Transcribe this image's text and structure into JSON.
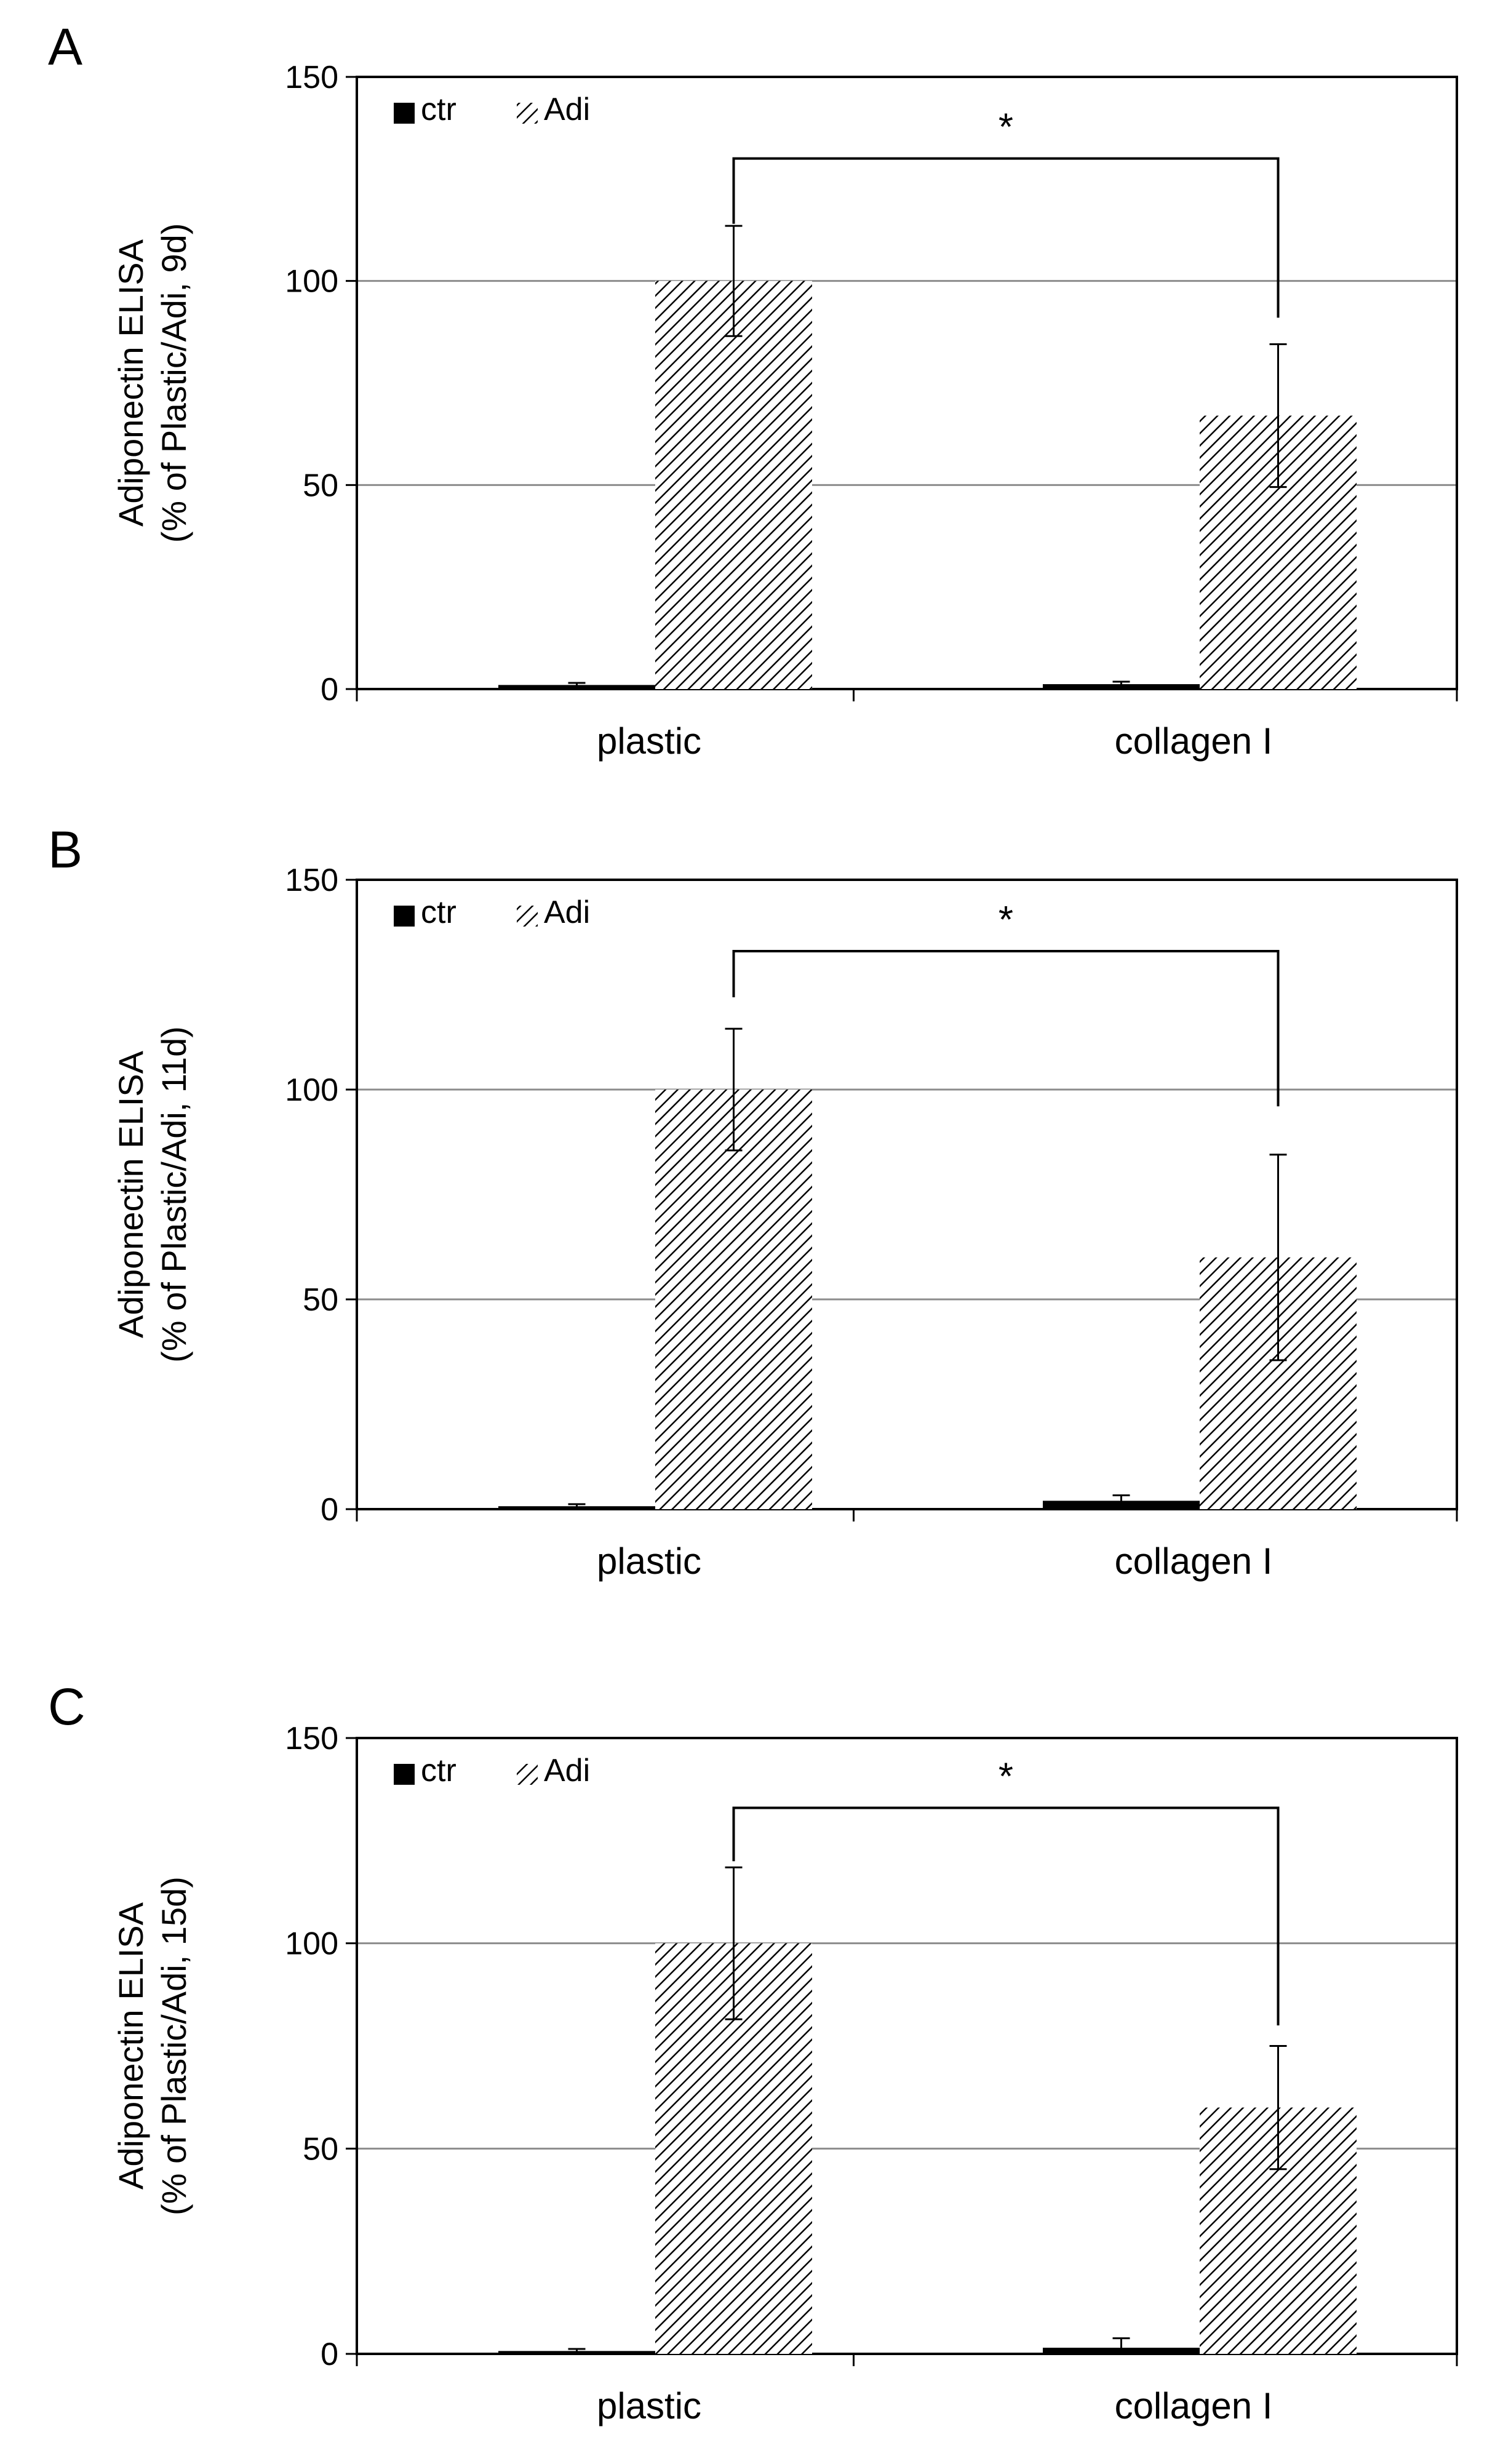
{
  "chart_data": [
    {
      "type": "bar",
      "panel": "A",
      "ylabel": [
        "Adiponectin ELISA",
        "(% of Plastic/Adi, 9d)"
      ],
      "categories": [
        "plastic",
        "collagen I"
      ],
      "series": [
        {
          "name": "ctr",
          "values": [
            1.0,
            1.2
          ],
          "errors": [
            0.5,
            0.6
          ]
        },
        {
          "name": "Adi",
          "values": [
            100,
            67
          ],
          "errors": [
            13.5,
            17.5
          ]
        }
      ],
      "yticks": [
        0,
        50,
        100,
        150
      ],
      "ylim": [
        0,
        150
      ],
      "significance": {
        "label": "*",
        "y": 130,
        "left_drop": 114,
        "right_drop": 91
      }
    },
    {
      "type": "bar",
      "panel": "B",
      "ylabel": [
        "Adiponectin ELISA",
        "(% of Plastic/Adi, 11d)"
      ],
      "categories": [
        "plastic",
        "collagen I"
      ],
      "series": [
        {
          "name": "ctr",
          "values": [
            0.7,
            2.0
          ],
          "errors": [
            0.5,
            1.3
          ]
        },
        {
          "name": "Adi",
          "values": [
            100,
            60
          ],
          "errors": [
            14.5,
            24.5
          ]
        }
      ],
      "yticks": [
        0,
        50,
        100,
        150
      ],
      "ylim": [
        0,
        150
      ],
      "significance": {
        "label": "*",
        "y": 133,
        "left_drop": 122,
        "right_drop": 96
      }
    },
    {
      "type": "bar",
      "panel": "C",
      "ylabel": [
        "Adiponectin ELISA",
        "(% of Plastic/Adi, 15d)"
      ],
      "categories": [
        "plastic",
        "collagen I"
      ],
      "series": [
        {
          "name": "ctr",
          "values": [
            0.7,
            1.5
          ],
          "errors": [
            0.5,
            2.3
          ]
        },
        {
          "name": "Adi",
          "values": [
            100,
            60
          ],
          "errors": [
            18.5,
            15
          ]
        }
      ],
      "yticks": [
        0,
        50,
        100,
        150
      ],
      "ylim": [
        0,
        150
      ],
      "significance": {
        "label": "*",
        "y": 133,
        "left_drop": 120,
        "right_drop": 80
      }
    }
  ]
}
